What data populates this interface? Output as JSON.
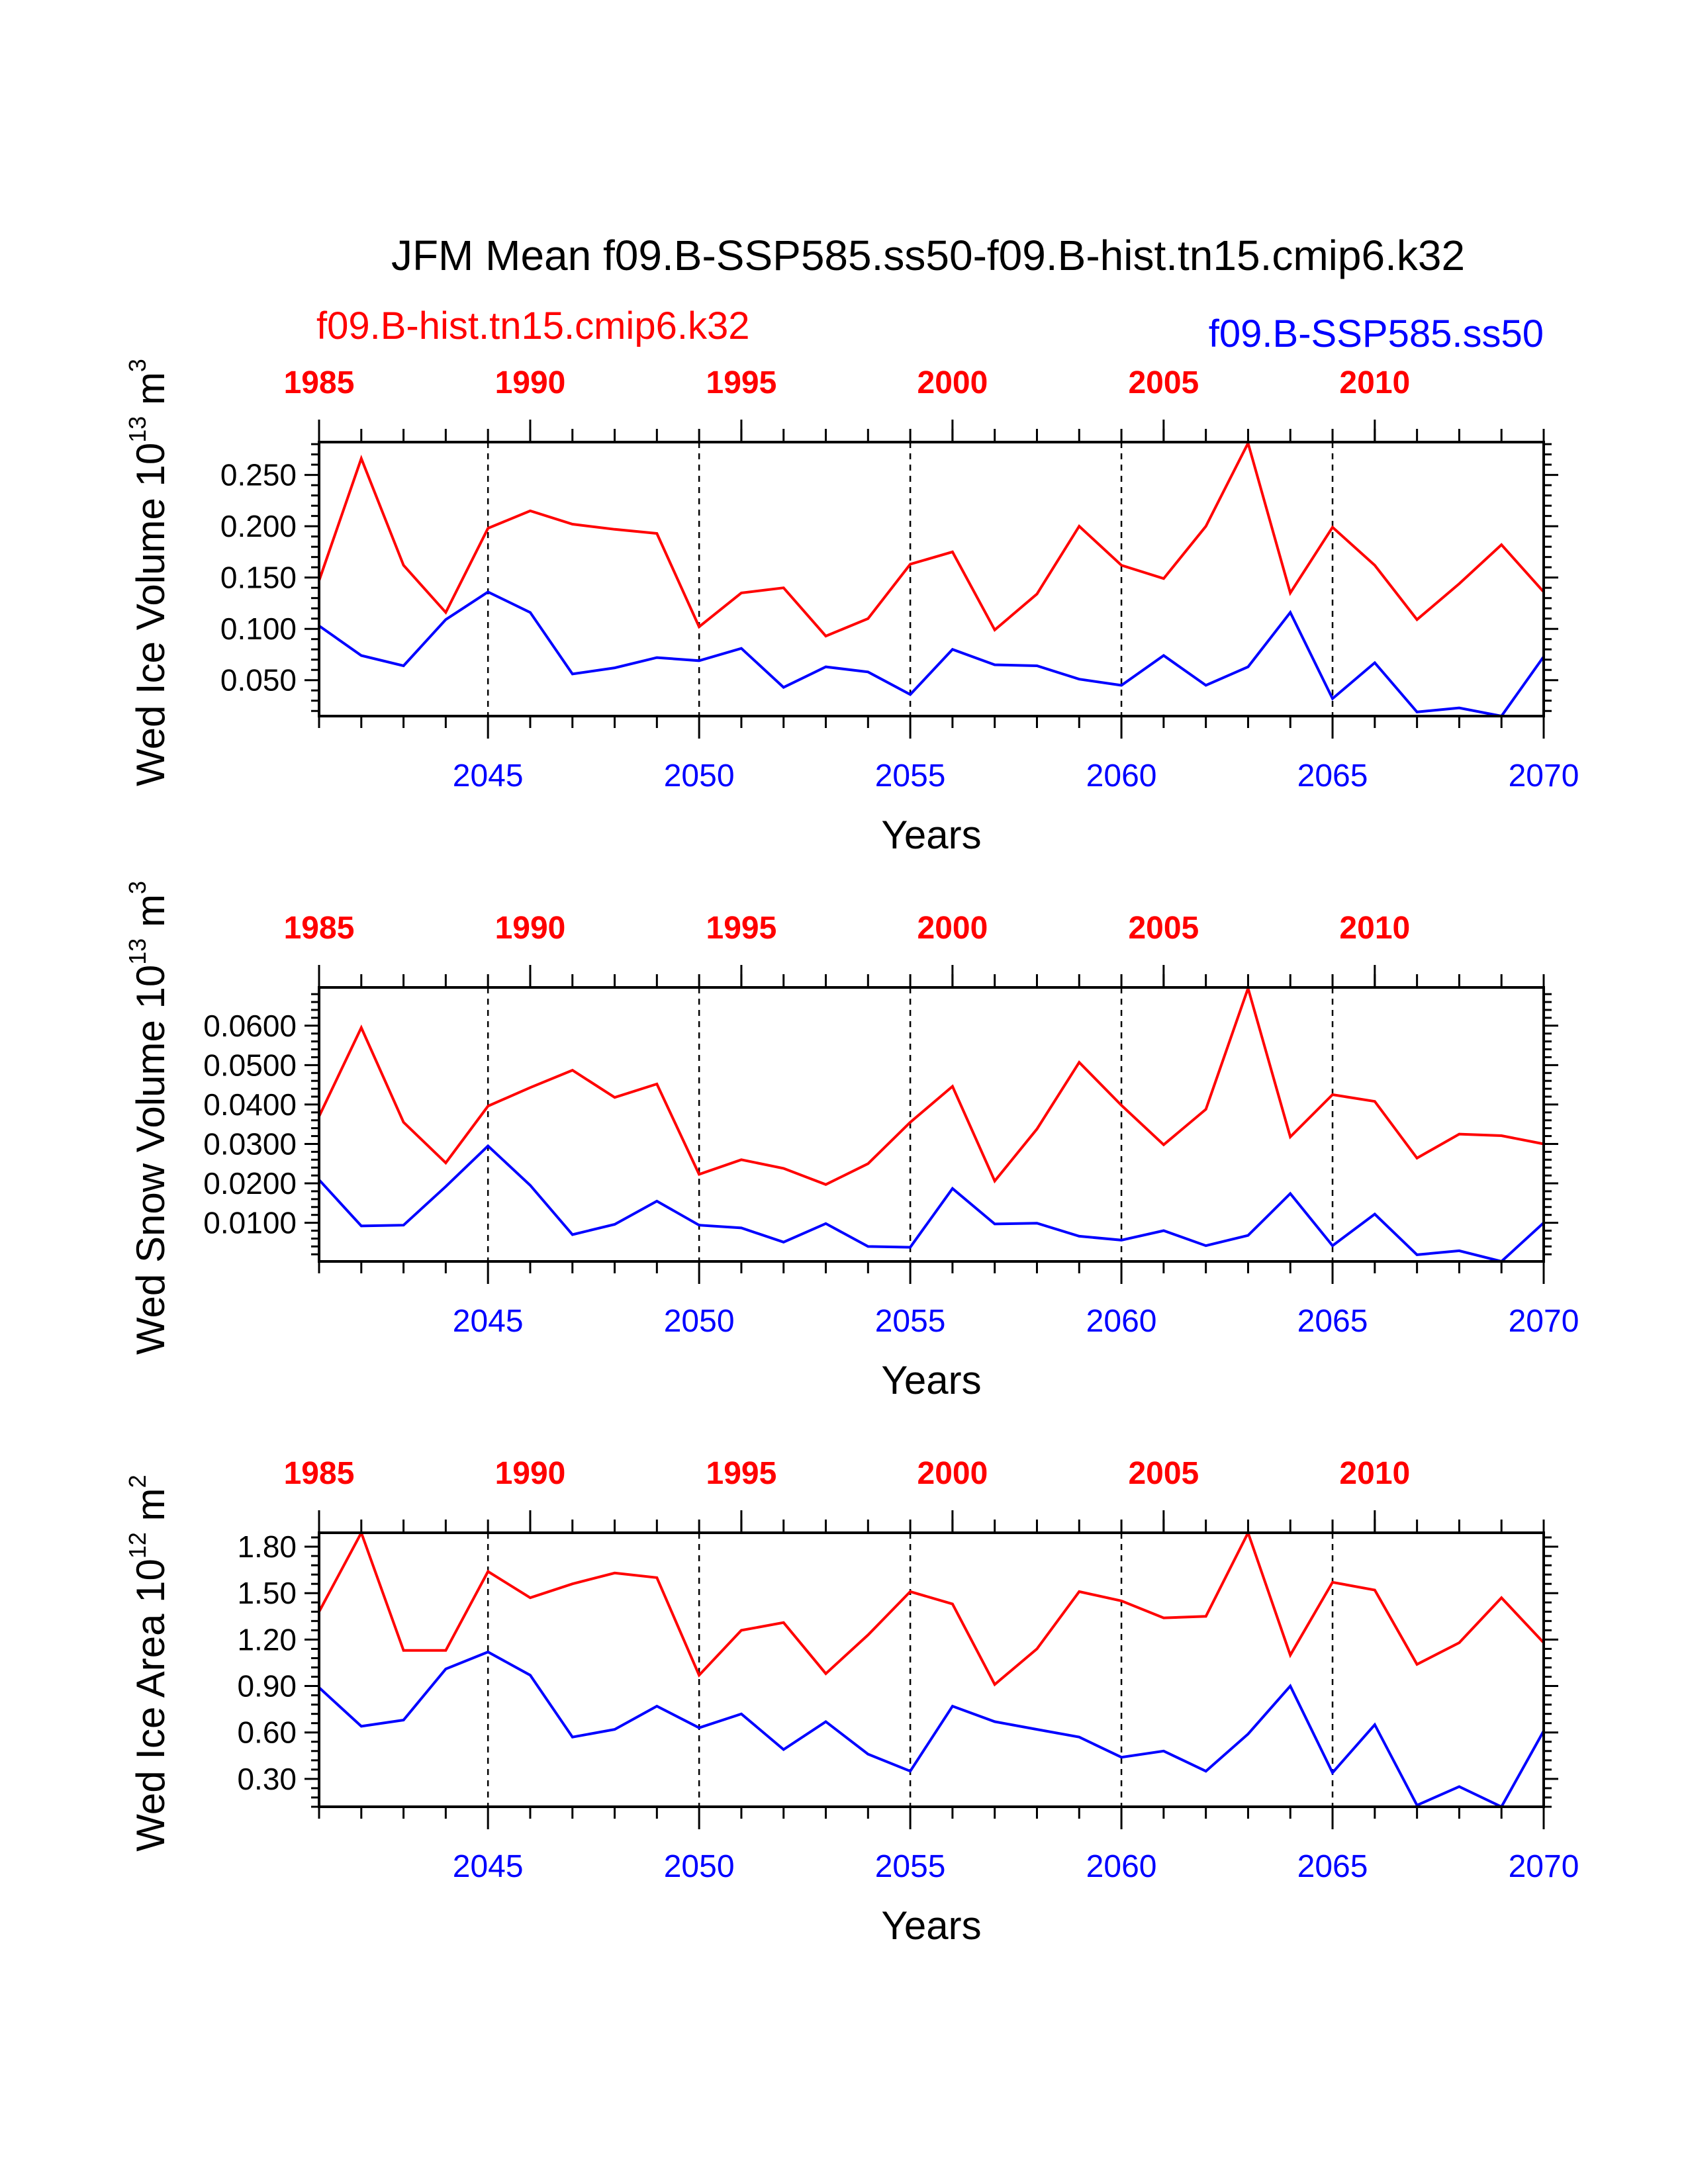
{
  "colors": {
    "hist": "#ff0000",
    "ssp": "#0000ff",
    "axis": "#000000"
  },
  "figure": {
    "title": "JFM Mean f09.B-SSP585.ss50-f09.B-hist.tn15.cmip6.k32",
    "legend_hist": "f09.B-hist.tn15.cmip6.k32",
    "legend_ssp": "f09.B-SSP585.ss50"
  },
  "top_ticks": [
    "1985",
    "1990",
    "1995",
    "2000",
    "2005",
    "2010"
  ],
  "bottom_ticks": [
    "2045",
    "2050",
    "2055",
    "2060",
    "2065",
    "2070"
  ],
  "panels": [
    {
      "xlabel": "Years",
      "ylabel_pre": "Wed Ice Volume 10",
      "ylabel_exp": "13",
      "ylabel_unit": " m",
      "ylabel_unit_exp": "3",
      "yticks": [
        "0.250",
        "0.200",
        "0.150",
        "0.100",
        "0.050"
      ]
    },
    {
      "xlabel": "Years",
      "ylabel_pre": "Wed Snow Volume 10",
      "ylabel_exp": "13",
      "ylabel_unit": " m",
      "ylabel_unit_exp": "3",
      "yticks": [
        "0.0600",
        "0.0500",
        "0.0400",
        "0.0300",
        "0.0200",
        "0.0100"
      ]
    },
    {
      "xlabel": "Years",
      "ylabel_pre": "Wed Ice Area 10",
      "ylabel_exp": "12",
      "ylabel_unit": " m",
      "ylabel_unit_exp": "2",
      "yticks": [
        "1.80",
        "1.50",
        "1.20",
        "0.90",
        "0.60",
        "0.30"
      ]
    }
  ],
  "chart_data": [
    {
      "type": "line",
      "title": "JFM Mean f09.B-SSP585.ss50-f09.B-hist.tn15.cmip6.k32",
      "xlabel": "Years",
      "ylabel": "Wed Ice Volume 10^13 m^3",
      "x_top_range": [
        1985,
        2014
      ],
      "x_bottom_range": [
        2041,
        2070
      ],
      "ylim": [
        0.015,
        0.282
      ],
      "grid": "dashed vertical lines at 2045, 2050, 2055, 2060, 2065",
      "x": [
        2041,
        2042,
        2043,
        2044,
        2045,
        2046,
        2047,
        2048,
        2049,
        2050,
        2051,
        2052,
        2053,
        2054,
        2055,
        2056,
        2057,
        2058,
        2059,
        2060,
        2061,
        2062,
        2063,
        2064,
        2065,
        2066,
        2067,
        2068,
        2069,
        2070
      ],
      "series": [
        {
          "name": "f09.B-hist.tn15.cmip6.k32",
          "values": [
            0.147,
            0.266,
            0.162,
            0.116,
            0.198,
            0.215,
            0.202,
            0.197,
            0.193,
            0.102,
            0.135,
            0.14,
            0.093,
            0.11,
            0.163,
            0.175,
            0.099,
            0.134,
            0.2,
            0.162,
            0.149,
            0.2,
            0.281,
            0.135,
            0.199,
            0.162,
            0.109,
            0.144,
            0.182,
            0.136
          ]
        },
        {
          "name": "f09.B-SSP585.ss50",
          "values": [
            0.103,
            0.074,
            0.064,
            0.109,
            0.136,
            0.116,
            0.056,
            0.062,
            0.072,
            0.069,
            0.081,
            0.043,
            0.063,
            0.058,
            0.036,
            0.08,
            0.065,
            0.064,
            0.051,
            0.045,
            0.074,
            0.045,
            0.063,
            0.116,
            0.032,
            0.067,
            0.019,
            0.023,
            0.015,
            0.073
          ]
        }
      ]
    },
    {
      "type": "line",
      "xlabel": "Years",
      "ylabel": "Wed Snow Volume 10^13 m^3",
      "x_top_range": [
        1985,
        2014
      ],
      "x_bottom_range": [
        2041,
        2070
      ],
      "ylim": [
        0.0002,
        0.0697
      ],
      "grid": "dashed vertical lines at 2045, 2050, 2055, 2060, 2065",
      "x": [
        2041,
        2042,
        2043,
        2044,
        2045,
        2046,
        2047,
        2048,
        2049,
        2050,
        2051,
        2052,
        2053,
        2054,
        2055,
        2056,
        2057,
        2058,
        2059,
        2060,
        2061,
        2062,
        2063,
        2064,
        2065,
        2066,
        2067,
        2068,
        2069,
        2070
      ],
      "series": [
        {
          "name": "f09.B-hist.tn15.cmip6.k32",
          "values": [
            0.037,
            0.0595,
            0.0355,
            0.0252,
            0.0396,
            0.0443,
            0.0487,
            0.0418,
            0.0452,
            0.0223,
            0.026,
            0.0238,
            0.0197,
            0.025,
            0.0355,
            0.0446,
            0.0206,
            0.0338,
            0.0507,
            0.0398,
            0.0298,
            0.0388,
            0.0695,
            0.0318,
            0.0425,
            0.0408,
            0.0264,
            0.0325,
            0.0321,
            0.03
          ]
        },
        {
          "name": "f09.B-SSP585.ss50",
          "values": [
            0.0209,
            0.0092,
            0.0094,
            0.0192,
            0.0295,
            0.0195,
            0.007,
            0.0096,
            0.0155,
            0.0094,
            0.0087,
            0.0051,
            0.0098,
            0.004,
            0.0038,
            0.0187,
            0.0097,
            0.0099,
            0.0066,
            0.0056,
            0.008,
            0.0042,
            0.0068,
            0.0174,
            0.0042,
            0.0122,
            0.0019,
            0.0029,
            0.0002,
            0.01
          ]
        }
      ]
    },
    {
      "type": "line",
      "xlabel": "Years",
      "ylabel": "Wed Ice Area 10^12 m^2",
      "x_top_range": [
        1985,
        2014
      ],
      "x_bottom_range": [
        2041,
        2070
      ],
      "ylim": [
        0.12,
        1.89
      ],
      "grid": "dashed vertical lines at 2045, 2050, 2055, 2060, 2065",
      "x": [
        2041,
        2042,
        2043,
        2044,
        2045,
        2046,
        2047,
        2048,
        2049,
        2050,
        2051,
        2052,
        2053,
        2054,
        2055,
        2056,
        2057,
        2058,
        2059,
        2060,
        2061,
        2062,
        2063,
        2064,
        2065,
        2066,
        2067,
        2068,
        2069,
        2070
      ],
      "series": [
        {
          "name": "f09.B-hist.tn15.cmip6.k32",
          "values": [
            1.38,
            1.89,
            1.13,
            1.13,
            1.64,
            1.47,
            1.56,
            1.63,
            1.6,
            0.97,
            1.26,
            1.31,
            0.98,
            1.23,
            1.51,
            1.43,
            0.91,
            1.14,
            1.51,
            1.45,
            1.34,
            1.35,
            1.89,
            1.1,
            1.57,
            1.52,
            1.04,
            1.18,
            1.47,
            1.18
          ]
        },
        {
          "name": "f09.B-SSP585.ss50",
          "values": [
            0.89,
            0.64,
            0.68,
            1.01,
            1.12,
            0.97,
            0.57,
            0.62,
            0.77,
            0.63,
            0.72,
            0.49,
            0.67,
            0.46,
            0.35,
            0.77,
            0.67,
            0.62,
            0.57,
            0.44,
            0.48,
            0.35,
            0.59,
            0.9,
            0.34,
            0.65,
            0.13,
            0.25,
            0.12,
            0.61
          ]
        }
      ]
    }
  ]
}
